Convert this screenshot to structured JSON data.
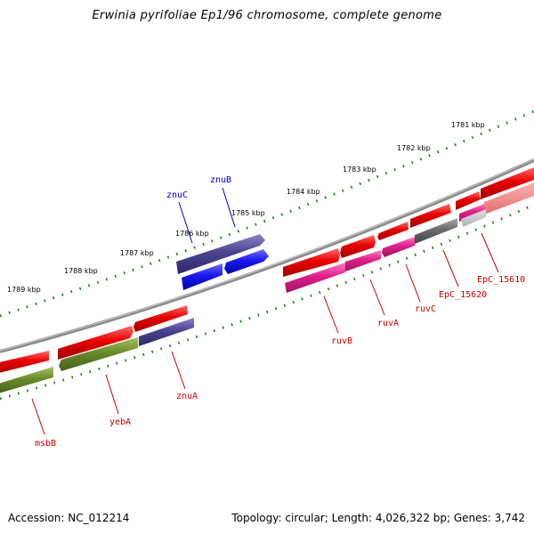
{
  "title": "Erwinia pyrifoliae Ep1/96 chromosome, complete genome",
  "accession": "Accession: NC_012214",
  "topology": "Topology: circular; Length: 4,026,322 bp; Genes: 3,742",
  "colors": {
    "backbone": "#8a8a8a",
    "gene_red": "#e50000",
    "gene_pink": "#e0208c",
    "gene_green": "#6a8a2a",
    "gene_navy": "#4a4490",
    "gene_blue": "#1a1aee",
    "gene_gray": "#6b6b6b",
    "tick": "#1a7a1a",
    "label_red": "#cc0000",
    "label_blue": "#0000cc"
  },
  "kbp_ticks": [
    {
      "label": "1781 kbp"
    },
    {
      "label": "1782 kbp"
    },
    {
      "label": "1783 kbp"
    },
    {
      "label": "1784 kbp"
    },
    {
      "label": "1785 kbp"
    },
    {
      "label": "1786 kbp"
    },
    {
      "label": "1787 kbp"
    },
    {
      "label": "1788 kbp"
    },
    {
      "label": "1789 kbp"
    }
  ],
  "gene_labels": [
    {
      "name": "znuC",
      "color": "blue"
    },
    {
      "name": "znuB",
      "color": "blue"
    },
    {
      "name": "ruvB",
      "color": "red"
    },
    {
      "name": "ruvA",
      "color": "red"
    },
    {
      "name": "ruvC",
      "color": "red"
    },
    {
      "name": "EpC_15620",
      "color": "red"
    },
    {
      "name": "EpC_15610",
      "color": "red"
    },
    {
      "name": "znuA",
      "color": "red"
    },
    {
      "name": "yebA",
      "color": "red"
    },
    {
      "name": "msbB",
      "color": "red"
    }
  ]
}
